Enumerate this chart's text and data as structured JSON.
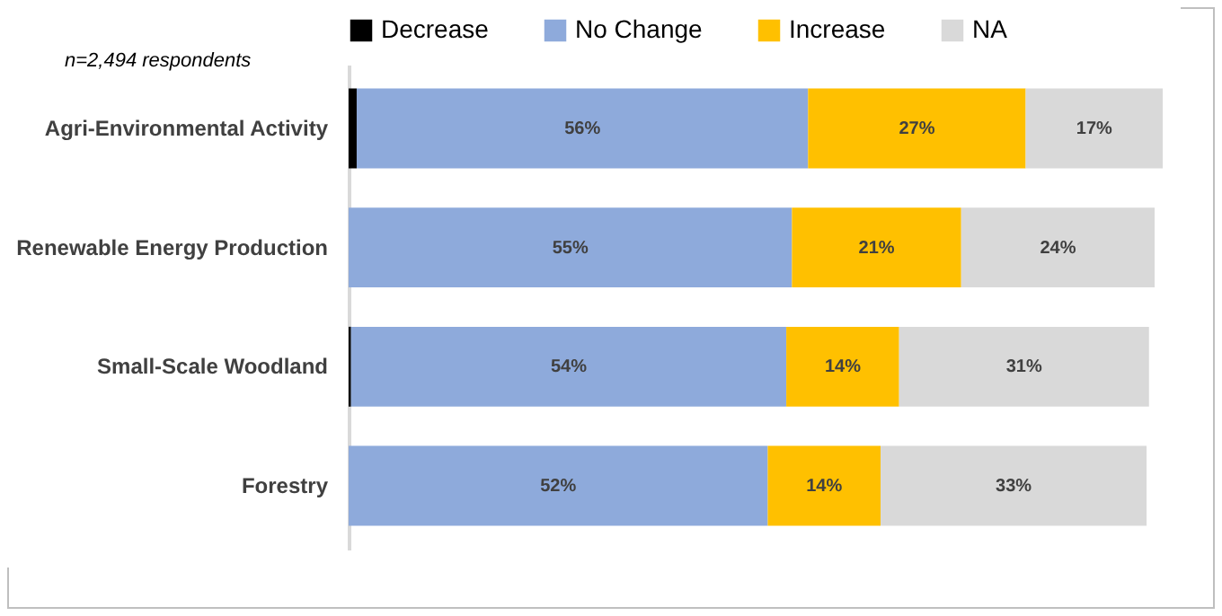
{
  "chart_data": {
    "type": "bar",
    "orientation": "horizontal",
    "stacked": true,
    "legend": "top",
    "grid": false,
    "annotations": [
      "n=2,494 respondents"
    ],
    "categories": [
      "Agri-Environmental Activity",
      "Renewable Energy Production",
      "Small-Scale Woodland",
      "Forestry"
    ],
    "series": [
      {
        "name": "Decrease",
        "color": "#000000",
        "values": [
          1,
          0,
          0.3,
          0
        ],
        "value_labels": [
          null,
          null,
          null,
          null
        ]
      },
      {
        "name": "No Change",
        "color": "#8eaadb",
        "values": [
          56,
          55,
          54,
          52
        ],
        "value_labels": [
          "56%",
          "55%",
          "54%",
          "52%"
        ]
      },
      {
        "name": "Increase",
        "color": "#ffc000",
        "values": [
          27,
          21,
          14,
          14
        ],
        "value_labels": [
          "27%",
          "21%",
          "14%",
          "14%"
        ]
      },
      {
        "name": "NA",
        "color": "#d9d9d9",
        "values": [
          17,
          24,
          31,
          33
        ],
        "value_labels": [
          "17%",
          "24%",
          "31%",
          "33%"
        ]
      }
    ]
  }
}
